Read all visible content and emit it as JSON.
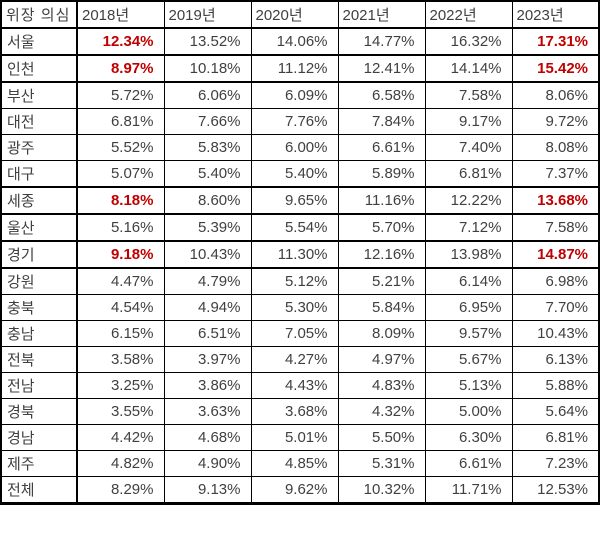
{
  "chart_data": {
    "type": "table",
    "title": "위장 의심 (suspected disguised-rate table by region and year)",
    "columns": [
      "위장 의심",
      "2018년",
      "2019년",
      "2020년",
      "2021년",
      "2022년",
      "2023년"
    ],
    "unit": "%",
    "highlight_value_indexes": [
      0,
      5
    ],
    "rows": [
      {
        "region": "서울",
        "values": [
          12.34,
          13.52,
          14.06,
          14.77,
          16.32,
          17.31
        ],
        "highlight": true
      },
      {
        "region": "인천",
        "values": [
          8.97,
          10.18,
          11.12,
          12.41,
          14.14,
          15.42
        ],
        "highlight": true
      },
      {
        "region": "부산",
        "values": [
          5.72,
          6.06,
          6.09,
          6.58,
          7.58,
          8.06
        ],
        "highlight": false
      },
      {
        "region": "대전",
        "values": [
          6.81,
          7.66,
          7.76,
          7.84,
          9.17,
          9.72
        ],
        "highlight": false
      },
      {
        "region": "광주",
        "values": [
          5.52,
          5.83,
          6.0,
          6.61,
          7.4,
          8.08
        ],
        "highlight": false
      },
      {
        "region": "대구",
        "values": [
          5.07,
          5.4,
          5.4,
          5.89,
          6.81,
          7.37
        ],
        "highlight": false
      },
      {
        "region": "세종",
        "values": [
          8.18,
          8.6,
          9.65,
          11.16,
          12.22,
          13.68
        ],
        "highlight": true
      },
      {
        "region": "울산",
        "values": [
          5.16,
          5.39,
          5.54,
          5.7,
          7.12,
          7.58
        ],
        "highlight": false
      },
      {
        "region": "경기",
        "values": [
          9.18,
          10.43,
          11.3,
          12.16,
          13.98,
          14.87
        ],
        "highlight": true
      },
      {
        "region": "강원",
        "values": [
          4.47,
          4.79,
          5.12,
          5.21,
          6.14,
          6.98
        ],
        "highlight": false
      },
      {
        "region": "충북",
        "values": [
          4.54,
          4.94,
          5.3,
          5.84,
          6.95,
          7.7
        ],
        "highlight": false
      },
      {
        "region": "충남",
        "values": [
          6.15,
          6.51,
          7.05,
          8.09,
          9.57,
          10.43
        ],
        "highlight": false
      },
      {
        "region": "전북",
        "values": [
          3.58,
          3.97,
          4.27,
          4.97,
          5.67,
          6.13
        ],
        "highlight": false
      },
      {
        "region": "전남",
        "values": [
          3.25,
          3.86,
          4.43,
          4.83,
          5.13,
          5.88
        ],
        "highlight": false
      },
      {
        "region": "경북",
        "values": [
          3.55,
          3.63,
          3.68,
          4.32,
          5.0,
          5.64
        ],
        "highlight": false
      },
      {
        "region": "경남",
        "values": [
          4.42,
          4.68,
          5.01,
          5.5,
          6.3,
          6.81
        ],
        "highlight": false
      },
      {
        "region": "제주",
        "values": [
          4.82,
          4.9,
          4.85,
          5.31,
          6.61,
          7.23
        ],
        "highlight": false
      },
      {
        "region": "전체",
        "values": [
          8.29,
          9.13,
          9.62,
          10.32,
          11.71,
          12.53
        ],
        "highlight": false
      }
    ],
    "colors": {
      "highlight_text": "#c00000",
      "text": "#404040",
      "border": "#000000",
      "background": "#ffffff"
    },
    "layout": {
      "grid": true,
      "value_align": "right",
      "header_align": "left"
    }
  }
}
